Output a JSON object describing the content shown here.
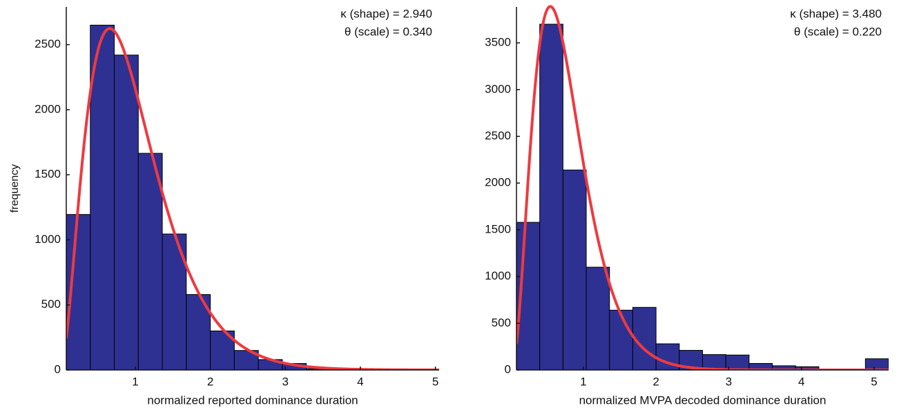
{
  "chart_data": [
    {
      "type": "histogram",
      "xlabel": "normalized reported dominance duration",
      "ylabel": "frequency",
      "bins": [
        0.08,
        0.4,
        0.72,
        1.04,
        1.36,
        1.68,
        2.0,
        2.32,
        2.64,
        2.96,
        3.28,
        3.6,
        3.92,
        4.24,
        4.56,
        4.88
      ],
      "values": [
        1195,
        2650,
        2420,
        1665,
        1045,
        580,
        300,
        150,
        80,
        50,
        10,
        5,
        3,
        2,
        1
      ],
      "color": "#2e3192",
      "fit": {
        "shape": {
          "value": 2.94,
          "label": "κ (shape) = 2.940"
        },
        "scale": {
          "value": 0.34,
          "label": "θ (scale) = 0.340"
        },
        "color": "#ee3a3f"
      },
      "xlim": [
        0.08,
        5.05
      ],
      "xticks": [
        1,
        2,
        3,
        4,
        5
      ],
      "ylim": [
        0,
        2790
      ],
      "yticks": [
        0,
        500,
        1000,
        1500,
        2000,
        2500
      ]
    },
    {
      "type": "histogram",
      "xlabel": "normalized MVPA decoded dominance duration",
      "bins": [
        0.08,
        0.4,
        0.72,
        1.04,
        1.36,
        1.68,
        2.0,
        2.32,
        2.64,
        2.96,
        3.28,
        3.6,
        3.92,
        4.24,
        4.56,
        4.88,
        5.2
      ],
      "values": [
        1580,
        3700,
        2140,
        1100,
        640,
        670,
        280,
        210,
        165,
        160,
        70,
        45,
        35,
        0,
        0,
        120
      ],
      "color": "#2e3192",
      "fit": {
        "shape": {
          "value": 3.48,
          "label": "κ (shape) = 3.480"
        },
        "scale": {
          "value": 0.22,
          "label": "θ (scale) = 0.220"
        },
        "color": "#ee3a3f"
      },
      "xlim": [
        0.08,
        5.2
      ],
      "xticks": [
        1,
        2,
        3,
        4,
        5
      ],
      "ylim": [
        0,
        3885
      ],
      "yticks": [
        0,
        500,
        1000,
        1500,
        2000,
        2500,
        3000,
        3500
      ]
    }
  ]
}
